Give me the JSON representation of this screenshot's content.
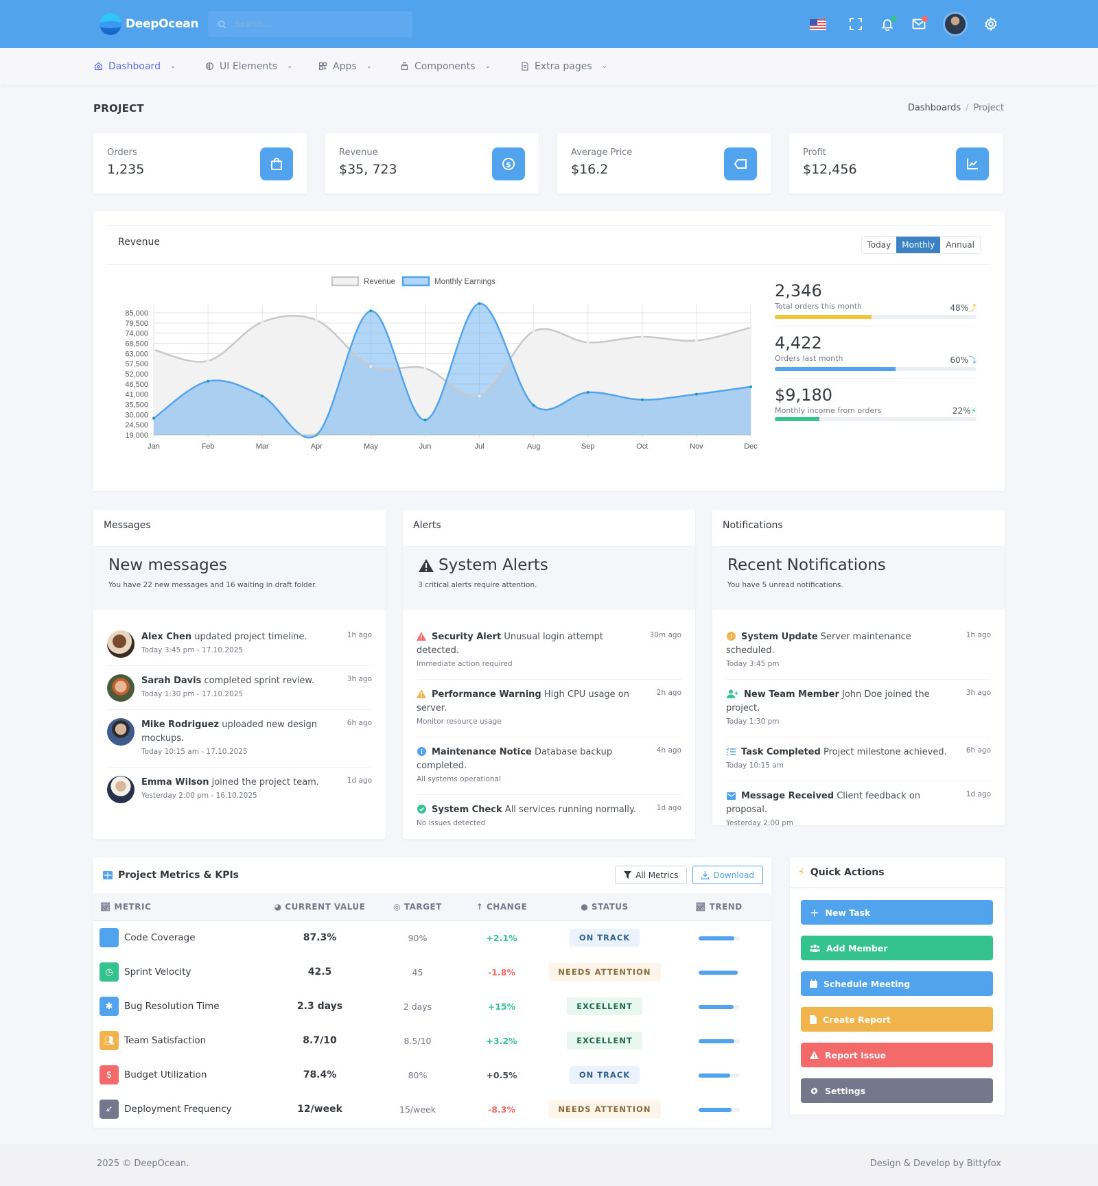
{
  "topbar": {
    "brand": "DeepOcean",
    "search_placeholder": "Search...",
    "icons": [
      "us-flag-icon",
      "fullscreen-icon",
      "bell-icon",
      "mail-icon",
      "user-avatar",
      "gear-icon"
    ],
    "bell_badge_color": "#34c38f",
    "mail_badge_color": "#f46a6a"
  },
  "nav": [
    {
      "label": "Dashboard",
      "icon": "home-icon",
      "active": true
    },
    {
      "label": "UI Elements",
      "icon": "ui-icon",
      "active": false
    },
    {
      "label": "Apps",
      "icon": "apps-icon",
      "active": false
    },
    {
      "label": "Components",
      "icon": "components-icon",
      "active": false
    },
    {
      "label": "Extra pages",
      "icon": "file-icon",
      "active": false
    }
  ],
  "page": {
    "title": "PROJECT",
    "breadcrumb": [
      "Dashboards",
      "Project"
    ]
  },
  "stats": [
    {
      "label": "Orders",
      "value": "1,235",
      "icon": "shopping-bag-icon"
    },
    {
      "label": "Revenue",
      "value": "$35, 723",
      "icon": "dollar-circle-icon"
    },
    {
      "label": "Average Price",
      "value": "$16.2",
      "icon": "tag-icon"
    },
    {
      "label": "Profit",
      "value": "$12,456",
      "icon": "line-chart-icon"
    }
  ],
  "revenue": {
    "title": "Revenue",
    "tabs": [
      "Today",
      "Monthly",
      "Annual"
    ],
    "active_tab": "Monthly",
    "side_stats": [
      {
        "value": "2,346",
        "label": "Total orders this month",
        "pct": "48%",
        "pct_num": 48,
        "color": "#f1c536",
        "arrow": "up-arrow-icon"
      },
      {
        "value": "4,422",
        "label": "Orders last month",
        "pct": "60%",
        "pct_num": 60,
        "color": "#51a3ee",
        "arrow": "down-arrow-icon"
      },
      {
        "value": "$9,180",
        "label": "Monthly income from orders",
        "pct": "22%",
        "pct_num": 22,
        "color": "#34c38f",
        "arrow": "bolt-icon"
      }
    ]
  },
  "chart_data": {
    "type": "area",
    "title": "Revenue",
    "x": [
      "Jan",
      "Feb",
      "Mar",
      "Apr",
      "May",
      "Jun",
      "Jul",
      "Aug",
      "Sep",
      "Oct",
      "Nov",
      "Dec"
    ],
    "series": [
      {
        "name": "Revenue",
        "values": [
          65000,
          59000,
          80000,
          81000,
          56000,
          55000,
          40000,
          75000,
          69000,
          72000,
          70000,
          77000
        ],
        "color": "#c8c8c8",
        "fill": "#f2f2f2"
      },
      {
        "name": "Monthly Earnings",
        "values": [
          28000,
          48000,
          40000,
          19000,
          86000,
          27000,
          90000,
          35000,
          42000,
          38000,
          41000,
          45000
        ],
        "color": "#51a3ee",
        "fill": "rgba(81,163,238,0.45)"
      }
    ],
    "yticks": [
      85000,
      79500,
      74000,
      68500,
      63000,
      57500,
      52000,
      46500,
      41000,
      35500,
      30000,
      24500,
      19000
    ],
    "ytick_labels": [
      "85,000",
      "79,500",
      "74,000",
      "68,500",
      "63,000",
      "57,500",
      "52,000",
      "46,500",
      "41,000",
      "35,500",
      "30,000",
      "24,500",
      "19,000"
    ],
    "ylim": [
      19000,
      90000
    ],
    "legend": [
      "Revenue",
      "Monthly Earnings"
    ],
    "legend_position": "top",
    "grid": true
  },
  "messages": {
    "header": "Messages",
    "title": "New messages",
    "subtitle": "You have 22 new messages and 16 waiting in draft folder.",
    "items": [
      {
        "name": "Alex Chen",
        "text": "updated project timeline.",
        "sub": "Today 3:45 pm - 17.10.2025",
        "time": "1h ago"
      },
      {
        "name": "Sarah Davis",
        "text": "completed sprint review.",
        "sub": "Today 1:30 pm - 17.10.2025",
        "time": "3h ago"
      },
      {
        "name": "Mike Rodriguez",
        "text": "uploaded new design mockups.",
        "sub": "Today 10:15 am - 17.10.2025",
        "time": "6h ago"
      },
      {
        "name": "Emma Wilson",
        "text": "joined the project team.",
        "sub": "Yesterday 2:00 pm - 16.10.2025",
        "time": "1d ago"
      }
    ]
  },
  "alerts": {
    "header": "Alerts",
    "title": "System Alerts",
    "subtitle": "3 critical alerts require attention.",
    "items": [
      {
        "name": "Security Alert",
        "text": "Unusual login attempt detected.",
        "sub": "Immediate action required",
        "time": "30m ago",
        "icon": "warning-icon",
        "color": "#f46a6a"
      },
      {
        "name": "Performance Warning",
        "text": "High CPU usage on server.",
        "sub": "Monitor resource usage",
        "time": "2h ago",
        "icon": "warning-icon",
        "color": "#f1b44c"
      },
      {
        "name": "Maintenance Notice",
        "text": "Database backup completed.",
        "sub": "All systems operational",
        "time": "4h ago",
        "icon": "info-icon",
        "color": "#51a3ee"
      },
      {
        "name": "System Check",
        "text": "All services running normally.",
        "sub": "No issues detected",
        "time": "1d ago",
        "icon": "check-circle-icon",
        "color": "#34c38f"
      }
    ]
  },
  "notifications": {
    "header": "Notifications",
    "title": "Recent Notifications",
    "subtitle": "You have 5 unread notifications.",
    "items": [
      {
        "name": "System Update",
        "text": "Server maintenance scheduled.",
        "sub": "Today 3:45 pm",
        "time": "1h ago",
        "icon": "exclamation-circle-icon",
        "color": "#f1b44c"
      },
      {
        "name": "New Team Member",
        "text": "John Doe joined the project.",
        "sub": "Today 1:30 pm",
        "time": "3h ago",
        "icon": "user-plus-icon",
        "color": "#34c38f"
      },
      {
        "name": "Task Completed",
        "text": "Project milestone achieved.",
        "sub": "Today 10:15 am",
        "time": "6h ago",
        "icon": "checklist-icon",
        "color": "#51a3ee"
      },
      {
        "name": "Message Received",
        "text": "Client feedback on proposal.",
        "sub": "Yesterday 2:00 pm",
        "time": "1d ago",
        "icon": "envelope-icon",
        "color": "#51a3ee"
      }
    ]
  },
  "kpi": {
    "title": "Project Metrics & KPIs",
    "filter_label": "All Metrics",
    "download_label": "Download",
    "columns": [
      "METRIC",
      "CURRENT VALUE",
      "TARGET",
      "CHANGE",
      "STATUS",
      "TREND"
    ],
    "rows": [
      {
        "metric": "Code Coverage",
        "icon": "code-icon",
        "icon_bg": "#51a3ee",
        "current": "87.3%",
        "target": "90%",
        "change": "+2.1%",
        "change_color": "#34c38f",
        "status": "ON TRACK",
        "status_bg": "#eaf3fd",
        "status_color": "#2f5f8c",
        "trend": 87
      },
      {
        "metric": "Sprint Velocity",
        "icon": "clock-icon",
        "icon_bg": "#34c38f",
        "current": "42.5",
        "target": "45",
        "change": "-1.8%",
        "change_color": "#f46a6a",
        "status": "NEEDS ATTENTION",
        "status_bg": "#fdf5ea",
        "status_color": "#8a6d3b",
        "trend": 95
      },
      {
        "metric": "Bug Resolution Time",
        "icon": "bug-icon",
        "icon_bg": "#51a3ee",
        "current": "2.3 days",
        "target": "2 days",
        "change": "+15%",
        "change_color": "#34c38f",
        "status": "EXCELLENT",
        "status_bg": "#e8f7f0",
        "status_color": "#1d6b4c",
        "trend": 85
      },
      {
        "metric": "Team Satisfaction",
        "icon": "users-icon",
        "icon_bg": "#f1b44c",
        "current": "8.7/10",
        "target": "8.5/10",
        "change": "+3.2%",
        "change_color": "#34c38f",
        "status": "EXCELLENT",
        "status_bg": "#e8f7f0",
        "status_color": "#1d6b4c",
        "trend": 87
      },
      {
        "metric": "Budget Utilization",
        "icon": "dollar-icon",
        "icon_bg": "#f46a6a",
        "current": "78.4%",
        "target": "80%",
        "change": "+0.5%",
        "change_color": "#495057",
        "status": "ON TRACK",
        "status_bg": "#eaf3fd",
        "status_color": "#2f5f8c",
        "trend": 78
      },
      {
        "metric": "Deployment Frequency",
        "icon": "rocket-icon",
        "icon_bg": "#74788d",
        "current": "12/week",
        "target": "15/week",
        "change": "-8.3%",
        "change_color": "#f46a6a",
        "status": "NEEDS ATTENTION",
        "status_bg": "#fdf5ea",
        "status_color": "#8a6d3b",
        "trend": 80
      }
    ]
  },
  "quick_actions": {
    "title": "Quick Actions",
    "buttons": [
      {
        "label": "New Task",
        "icon": "plus-icon",
        "color": "#51a3ee"
      },
      {
        "label": "Add Member",
        "icon": "users-icon",
        "color": "#34c38f"
      },
      {
        "label": "Schedule Meeting",
        "icon": "calendar-icon",
        "color": "#51a3ee"
      },
      {
        "label": "Create Report",
        "icon": "file-icon",
        "color": "#f1b44c"
      },
      {
        "label": "Report Issue",
        "icon": "warning-icon",
        "color": "#f46a6a"
      },
      {
        "label": "Settings",
        "icon": "gear-icon",
        "color": "#74788d"
      }
    ]
  },
  "footer": {
    "left": "2025 © DeepOcean.",
    "right": "Design & Develop by Bittyfox"
  }
}
